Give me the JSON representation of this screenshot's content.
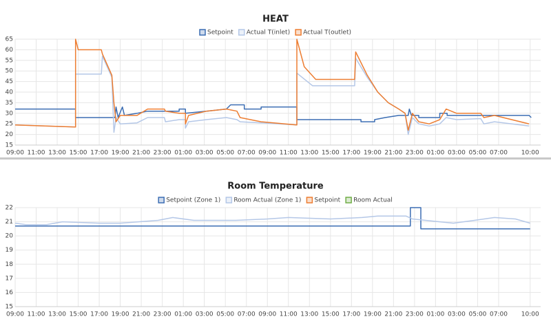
{
  "chart_data": [
    {
      "type": "line",
      "title": "HEAT",
      "ylim": [
        15,
        65
      ],
      "yticks": [
        15,
        20,
        25,
        30,
        35,
        40,
        45,
        50,
        55,
        60,
        65
      ],
      "xlim": [
        0,
        50
      ],
      "xticks": [
        {
          "value": 0,
          "label": "09:00"
        },
        {
          "value": 2,
          "label": "11:00"
        },
        {
          "value": 4,
          "label": "13:00"
        },
        {
          "value": 6,
          "label": "15:00"
        },
        {
          "value": 8,
          "label": "17:00"
        },
        {
          "value": 10,
          "label": "19:00"
        },
        {
          "value": 12,
          "label": "21:00"
        },
        {
          "value": 14,
          "label": "23:00"
        },
        {
          "value": 16,
          "label": "01:00"
        },
        {
          "value": 18,
          "label": "03:00"
        },
        {
          "value": 20,
          "label": "05:00"
        },
        {
          "value": 22,
          "label": "07:00"
        },
        {
          "value": 24,
          "label": "09:00"
        },
        {
          "value": 26,
          "label": "11:00"
        },
        {
          "value": 28,
          "label": "13:00"
        },
        {
          "value": 30,
          "label": "15:00"
        },
        {
          "value": 32,
          "label": "17:00"
        },
        {
          "value": 34,
          "label": "19:00"
        },
        {
          "value": 36,
          "label": "21:00"
        },
        {
          "value": 38,
          "label": "23:00"
        },
        {
          "value": 40,
          "label": "01:00"
        },
        {
          "value": 42,
          "label": "03:00"
        },
        {
          "value": 44,
          "label": "05:00"
        },
        {
          "value": 46,
          "label": "07:00"
        },
        {
          "value": 49,
          "label": "10:00"
        }
      ],
      "grid": true,
      "series": [
        {
          "name": "Setpoint",
          "color": "#3b6db3",
          "x": [
            0,
            5.75,
            5.75,
            9.5,
            9.6,
            9.8,
            10.2,
            10.4,
            11.6,
            12.6,
            15.6,
            15.6,
            16.2,
            16.2,
            18.2,
            20.1,
            20.5,
            21.8,
            21.8,
            23.4,
            23.4,
            26.8,
            26.8,
            32.9,
            32.9,
            34.2,
            34.2,
            35.2,
            36.5,
            37.4,
            37.5,
            37.7,
            38.4,
            38.4,
            40.4,
            40.4,
            41.1,
            41.1,
            48.9,
            49.1
          ],
          "values": [
            32,
            32,
            28,
            28,
            33,
            28,
            33,
            29,
            30,
            31,
            31,
            32,
            32,
            30,
            31,
            32,
            34,
            34,
            32,
            32,
            33,
            33,
            27,
            27,
            26,
            26,
            27,
            28,
            29,
            29,
            32,
            29,
            29,
            28,
            28,
            30,
            30,
            29,
            29,
            28
          ]
        },
        {
          "name": "Actual T(inlet)",
          "color": "#b4c7e7",
          "x": [
            0,
            5.75,
            5.75,
            8.2,
            8.3,
            9.2,
            9.4,
            9.6,
            10,
            11.6,
            12.6,
            14.2,
            14.3,
            15.6,
            16.2,
            16.2,
            16.5,
            18.2,
            20.1,
            21.1,
            21.4,
            23.4,
            26.8,
            26.8,
            28.3,
            32.3,
            32.4,
            33.5,
            34.5,
            35.5,
            36.5,
            37.1,
            37.4,
            37.8,
            38.4,
            39.4,
            40.4,
            41,
            42,
            44.3,
            44.6,
            45.6,
            48.9
          ],
          "values": [
            24.5,
            23.5,
            48.5,
            48.5,
            57,
            47,
            21,
            28,
            25,
            25.5,
            28,
            28,
            26,
            27,
            27,
            23,
            26,
            27,
            28,
            27,
            26,
            25.5,
            24.5,
            49,
            43,
            43,
            56,
            47,
            40,
            35,
            32,
            30,
            20,
            28,
            25,
            24,
            25,
            28,
            27,
            27.5,
            25,
            26,
            24
          ]
        },
        {
          "name": "Actual T(outlet)",
          "color": "#ed7d31",
          "x": [
            0,
            5.75,
            5.75,
            6,
            8.2,
            8.3,
            9.2,
            9.4,
            9.6,
            10,
            11.6,
            12.6,
            14.2,
            14.3,
            15.6,
            16.2,
            16.2,
            16.5,
            18.2,
            20.1,
            21.1,
            21.4,
            23.4,
            26.8,
            26.8,
            27.5,
            28.6,
            32.3,
            32.4,
            33.5,
            34.5,
            35.5,
            36.5,
            37.1,
            37.4,
            37.8,
            38.4,
            39.4,
            40.4,
            41,
            42,
            44.3,
            44.6,
            45.6,
            48.9
          ],
          "values": [
            24.5,
            23.5,
            65,
            60,
            60,
            58,
            48,
            35,
            26,
            29,
            29,
            32,
            32,
            31,
            30,
            30,
            25,
            29,
            31,
            32,
            31,
            28,
            26,
            24.5,
            65,
            52,
            46,
            46,
            59,
            48,
            40,
            35,
            32,
            30,
            22,
            30,
            26,
            25,
            27,
            32,
            30,
            30,
            28,
            29,
            25
          ]
        }
      ]
    },
    {
      "type": "line",
      "title": "Room Temperature",
      "ylim": [
        15,
        22
      ],
      "yticks": [
        15,
        16,
        17,
        18,
        19,
        20,
        21,
        22
      ],
      "xlim": [
        0,
        50
      ],
      "xticks": [
        {
          "value": 0,
          "label": "09:00"
        },
        {
          "value": 2,
          "label": "11:00"
        },
        {
          "value": 4,
          "label": "13:00"
        },
        {
          "value": 6,
          "label": "15:00"
        },
        {
          "value": 8,
          "label": "17:00"
        },
        {
          "value": 10,
          "label": "19:00"
        },
        {
          "value": 12,
          "label": "21:00"
        },
        {
          "value": 14,
          "label": "23:00"
        },
        {
          "value": 16,
          "label": "01:00"
        },
        {
          "value": 18,
          "label": "03:00"
        },
        {
          "value": 20,
          "label": "05:00"
        },
        {
          "value": 22,
          "label": "07:00"
        },
        {
          "value": 24,
          "label": "09:00"
        },
        {
          "value": 26,
          "label": "11:00"
        },
        {
          "value": 28,
          "label": "13:00"
        },
        {
          "value": 30,
          "label": "15:00"
        },
        {
          "value": 32,
          "label": "17:00"
        },
        {
          "value": 34,
          "label": "19:00"
        },
        {
          "value": 36,
          "label": "21:00"
        },
        {
          "value": 38,
          "label": "23:00"
        },
        {
          "value": 40,
          "label": "01:00"
        },
        {
          "value": 42,
          "label": "03:00"
        },
        {
          "value": 44,
          "label": "05:00"
        },
        {
          "value": 46,
          "label": "07:00"
        },
        {
          "value": 49,
          "label": "10:00"
        }
      ],
      "grid": true,
      "series": [
        {
          "name": "Setpoint (Zone 1)",
          "color": "#3b6db3",
          "x": [
            0,
            37.6,
            37.6,
            38.6,
            38.6,
            49
          ],
          "values": [
            20.7,
            20.7,
            22,
            22,
            20.5,
            20.5
          ]
        },
        {
          "name": "Room Actual (Zone 1)",
          "color": "#b4c7e7",
          "x": [
            0,
            1,
            3,
            4.5,
            8,
            10,
            13.6,
            15,
            17,
            21,
            24,
            26,
            30,
            33,
            34.5,
            37.2,
            37.8,
            40.4,
            41.7,
            43.7,
            45.6,
            47.6,
            49
          ],
          "values": [
            20.9,
            20.8,
            20.8,
            21,
            20.9,
            20.9,
            21.1,
            21.3,
            21.1,
            21.1,
            21.2,
            21.3,
            21.2,
            21.3,
            21.4,
            21.4,
            21.2,
            21,
            20.9,
            21.1,
            21.3,
            21.2,
            20.9
          ]
        },
        {
          "name": "Setpoint",
          "color": "#ed7d31",
          "x": [],
          "values": []
        },
        {
          "name": "Room Actual",
          "color": "#70ad47",
          "x": [],
          "values": []
        }
      ]
    }
  ]
}
